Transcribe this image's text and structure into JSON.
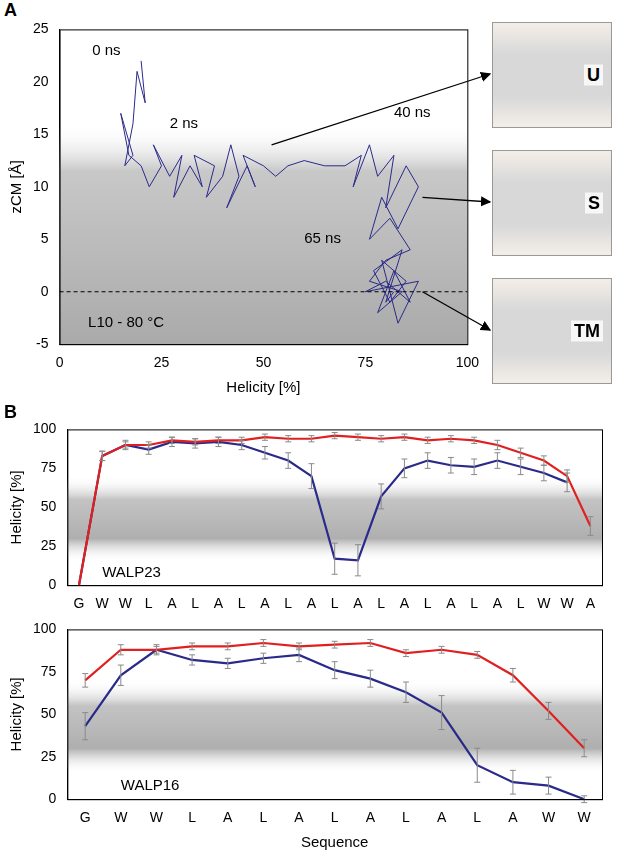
{
  "chart_data": [
    {
      "panel": "A",
      "type": "scatter",
      "xlabel": "Helicity [%]",
      "ylabel": "zCM [Å]",
      "xlim": [
        0,
        100
      ],
      "xticks": [
        0,
        25,
        50,
        75,
        100
      ],
      "ylim": [
        -5,
        25
      ],
      "yticks": [
        -5,
        0,
        5,
        10,
        15,
        20,
        25
      ],
      "grid": false,
      "series": [
        {
          "color": "#2a2a8a",
          "line_style": "solid",
          "marker": "none",
          "x": [
            20,
            21,
            19,
            18,
            17,
            16,
            18,
            15,
            17,
            20,
            22,
            25,
            23,
            27,
            30,
            28,
            32,
            35,
            33,
            38,
            36,
            40,
            42,
            44,
            41,
            46,
            48,
            45,
            50,
            53,
            56,
            60,
            65,
            70,
            74,
            72,
            76,
            78,
            82,
            80,
            85,
            88,
            83,
            79,
            76,
            81,
            86,
            80,
            76,
            84,
            78,
            82,
            86,
            80,
            75,
            88,
            83,
            79,
            85,
            81,
            77,
            84,
            80,
            82
          ],
          "values": [
            22,
            18,
            21,
            16,
            14,
            12,
            13,
            17,
            13,
            12,
            10,
            12,
            14,
            11,
            13,
            9,
            12,
            10,
            13,
            12,
            9,
            11,
            14,
            11,
            8,
            12,
            10,
            13,
            12,
            11,
            12,
            12.5,
            12,
            12,
            13,
            10,
            14,
            11,
            13,
            8,
            12,
            10,
            6,
            9,
            5,
            7,
            4,
            3,
            1,
            0,
            -2,
            2,
            -1,
            1,
            0,
            1,
            -3,
            3,
            1,
            -1,
            2,
            4,
            -1,
            0
          ]
        }
      ],
      "hline": 0,
      "annotations": [
        {
          "text": "0 ns",
          "x": 8,
          "y": 23
        },
        {
          "text": "2 ns",
          "x": 27,
          "y": 16
        },
        {
          "text": "40 ns",
          "x": 82,
          "y": 17
        },
        {
          "text": "65 ns",
          "x": 60,
          "y": 5
        },
        {
          "text": "L10 - 80 °C",
          "x": 7,
          "y": -3
        }
      ],
      "snapshots": [
        {
          "label": "U",
          "x": 52,
          "y": 14
        },
        {
          "label": "S",
          "x": 89,
          "y": 9
        },
        {
          "label": "TM",
          "x": 89,
          "y": 0
        }
      ]
    },
    {
      "panel": "B",
      "type": "line",
      "ylabel": "Helicity [%]",
      "categories": [
        "G",
        "W",
        "W",
        "L",
        "A",
        "L",
        "A",
        "L",
        "A",
        "L",
        "A",
        "L",
        "A",
        "L",
        "A",
        "L",
        "A",
        "L",
        "A",
        "L",
        "W",
        "W",
        "A"
      ],
      "ylim": [
        0,
        100
      ],
      "yticks": [
        0,
        25,
        50,
        75,
        100
      ],
      "grid": false,
      "series": [
        {
          "color": "#e02020",
          "marker": "none",
          "line_style": "solid",
          "values": [
            0,
            83,
            90,
            90,
            93,
            92,
            93,
            93,
            95,
            94,
            94,
            96,
            95,
            94,
            95,
            93,
            94,
            93,
            90,
            85,
            80,
            70,
            38
          ],
          "errors": [
            0,
            3,
            2,
            2,
            2,
            2,
            2,
            2,
            2,
            2,
            2,
            2,
            2,
            2,
            2,
            2,
            2,
            2,
            3,
            3,
            3,
            4,
            6
          ]
        },
        {
          "color": "#2a2a8a",
          "marker": "none",
          "line_style": "solid",
          "values": [
            0,
            83,
            90,
            87,
            92,
            91,
            92,
            90,
            85,
            80,
            70,
            17,
            16,
            57,
            75,
            80,
            77,
            76,
            80,
            76,
            72,
            66,
            null
          ],
          "errors": [
            0,
            3,
            3,
            3,
            3,
            3,
            3,
            3,
            4,
            5,
            8,
            10,
            10,
            8,
            6,
            5,
            5,
            5,
            5,
            5,
            5,
            6,
            null
          ]
        }
      ],
      "annotations": [
        {
          "text": "WALP23",
          "x": 1,
          "y": 8
        }
      ]
    },
    {
      "panel": "",
      "type": "line",
      "xlabel": "Sequence",
      "ylabel": "Helicity [%]",
      "categories": [
        "G",
        "W",
        "W",
        "L",
        "A",
        "L",
        "A",
        "L",
        "A",
        "L",
        "A",
        "L",
        "A",
        "W",
        "W"
      ],
      "ylim": [
        0,
        100
      ],
      "yticks": [
        0,
        25,
        50,
        75,
        100
      ],
      "grid": false,
      "series": [
        {
          "color": "#e02020",
          "marker": "none",
          "line_style": "solid",
          "values": [
            70,
            88,
            88,
            90,
            90,
            92,
            90,
            91,
            92,
            86,
            88,
            85,
            73,
            52,
            30
          ],
          "errors": [
            4,
            3,
            2,
            2,
            2,
            2,
            2,
            2,
            2,
            2,
            2,
            2,
            4,
            5,
            5
          ]
        },
        {
          "color": "#2a2a8a",
          "marker": "none",
          "line_style": "solid",
          "values": [
            43,
            73,
            88,
            82,
            80,
            83,
            85,
            76,
            71,
            63,
            51,
            20,
            10,
            8,
            0
          ],
          "errors": [
            8,
            6,
            3,
            3,
            3,
            3,
            4,
            5,
            5,
            6,
            10,
            10,
            7,
            5,
            2
          ]
        }
      ],
      "annotations": [
        {
          "text": "WALP16",
          "x": 1,
          "y": 8
        }
      ]
    }
  ]
}
